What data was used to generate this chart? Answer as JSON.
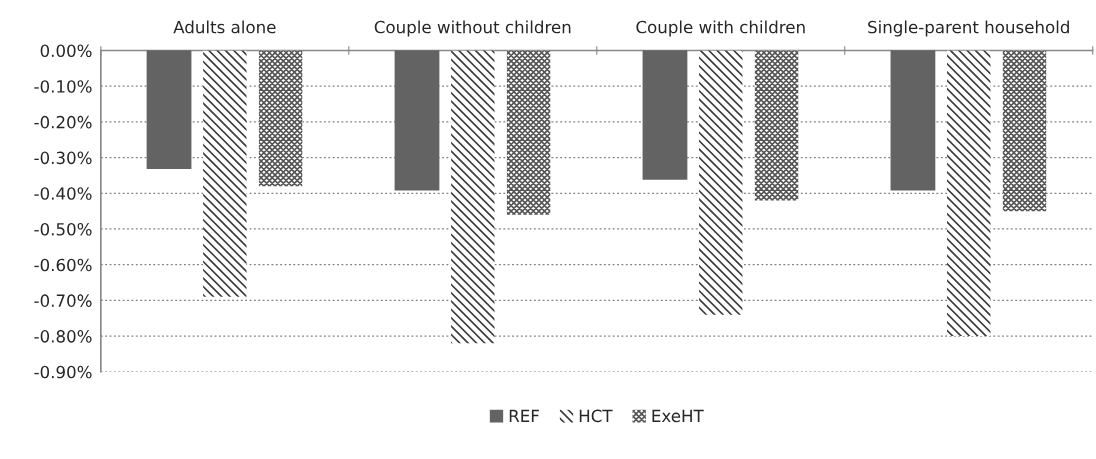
{
  "chart_data": {
    "type": "bar",
    "categories": [
      "Adults alone",
      "Couple without children",
      "Couple with children",
      "Single-parent household"
    ],
    "series": [
      {
        "name": "REF",
        "color": "#636363",
        "values": [
          -0.33,
          -0.39,
          -0.36,
          -0.39
        ]
      },
      {
        "name": "HCT",
        "color": "#3c3c3c",
        "values": [
          -0.69,
          -0.82,
          -0.74,
          -0.8
        ]
      },
      {
        "name": "ExeHT",
        "color": "#555555",
        "values": [
          -0.38,
          -0.46,
          -0.42,
          -0.45
        ]
      }
    ],
    "ylim": [
      -0.9,
      0
    ],
    "yticks": [
      {
        "value": 0,
        "label": "0.00%"
      },
      {
        "value": -0.1,
        "label": "-0.10%"
      },
      {
        "value": -0.2,
        "label": "-0.20%"
      },
      {
        "value": -0.3,
        "label": "-0.30%"
      },
      {
        "value": -0.4,
        "label": "-0.40%"
      },
      {
        "value": -0.5,
        "label": "-0.50%"
      },
      {
        "value": -0.6,
        "label": "-0.60%"
      },
      {
        "value": -0.7,
        "label": "-0.70%"
      },
      {
        "value": -0.8,
        "label": "-0.80%"
      },
      {
        "value": -0.9,
        "label": "-0.90%"
      }
    ],
    "grid": "y",
    "legend": "bottom"
  }
}
